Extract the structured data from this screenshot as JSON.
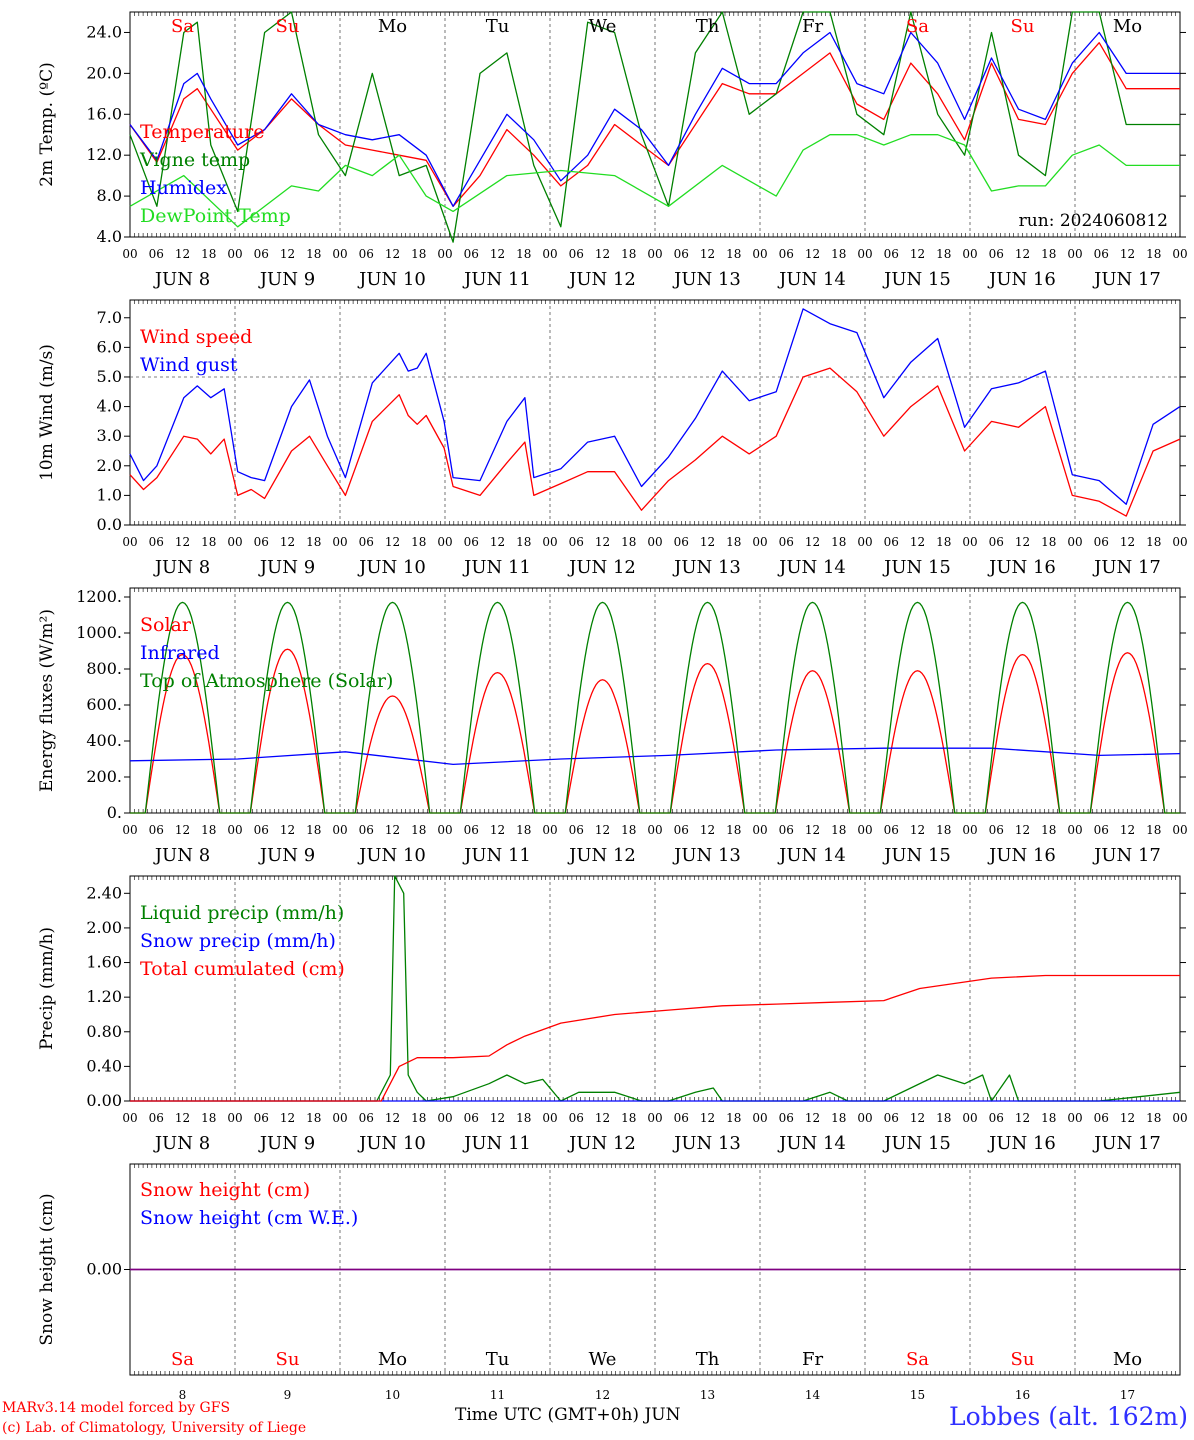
{
  "meta": {
    "run_label": "run: 2024060812",
    "credit_line1": "MARv3.14 model forced by GFS",
    "credit_line2": "(c) Lab. of Climatology, University of Liege",
    "x_title": "Time UTC (GMT+0h) JUN",
    "station": "Lobbes (alt. 162m)"
  },
  "axis": {
    "hour_ticks": [
      "00",
      "06",
      "12",
      "18"
    ],
    "final_tick": "00",
    "days": [
      {
        "month": "JUN",
        "day": "8",
        "weekday": "Sa",
        "weekend": true
      },
      {
        "month": "JUN",
        "day": "9",
        "weekday": "Su",
        "weekend": true
      },
      {
        "month": "JUN",
        "day": "10",
        "weekday": "Mo",
        "weekend": false
      },
      {
        "month": "JUN",
        "day": "11",
        "weekday": "Tu",
        "weekend": false
      },
      {
        "month": "JUN",
        "day": "12",
        "weekday": "We",
        "weekend": false
      },
      {
        "month": "JUN",
        "day": "13",
        "weekday": "Th",
        "weekend": false
      },
      {
        "month": "JUN",
        "day": "14",
        "weekday": "Fr",
        "weekend": false
      },
      {
        "month": "JUN",
        "day": "15",
        "weekday": "Sa",
        "weekend": true
      },
      {
        "month": "JUN",
        "day": "16",
        "weekday": "Su",
        "weekend": true
      },
      {
        "month": "JUN",
        "day": "17",
        "weekday": "Mo",
        "weekend": false
      }
    ]
  },
  "colors": {
    "red": "#ff0000",
    "green": "#008000",
    "blue": "#0000ff",
    "lime": "#22dd22",
    "purple": "#800080",
    "axis": "#000000",
    "grid": "#555555"
  },
  "chart_data": [
    {
      "id": "temp",
      "type": "line",
      "ylabel": "2m Temp. (ºC)",
      "ylim": [
        4,
        26
      ],
      "yticks": [
        4,
        8,
        12,
        16,
        20,
        24
      ],
      "ytick_labels": [
        "4.0",
        "8.0",
        "12.0",
        "16.0",
        "20.0",
        "24.0"
      ],
      "x_unit": "hours since JUN 8 00 UTC",
      "series": [
        {
          "name": "Temperature",
          "color": "red",
          "x": [
            0,
            6,
            12,
            15,
            18,
            24,
            30,
            36,
            42,
            48,
            54,
            60,
            66,
            72,
            78,
            84,
            90,
            96,
            102,
            108,
            114,
            120,
            126,
            132,
            138,
            144,
            150,
            156,
            162,
            168,
            174,
            180,
            186,
            192,
            198,
            204,
            210,
            216,
            222,
            228,
            234
          ],
          "y": [
            15,
            11.3,
            17.5,
            18.5,
            16.5,
            12.5,
            14.5,
            17.5,
            15,
            13,
            12.5,
            12,
            11.5,
            7,
            10,
            14.5,
            12,
            9,
            11,
            15,
            13,
            11,
            15,
            19,
            18,
            18,
            20,
            22,
            17,
            15.5,
            21,
            18,
            13.5,
            21,
            15.5,
            15,
            20,
            23,
            18.5,
            18.5,
            18.5
          ]
        },
        {
          "name": "Vigne temp",
          "color": "green",
          "x": [
            0,
            6,
            12,
            15,
            18,
            24,
            30,
            36,
            42,
            48,
            54,
            60,
            66,
            72,
            78,
            84,
            90,
            96,
            102,
            108,
            114,
            120,
            126,
            132,
            138,
            144,
            150,
            156,
            162,
            168,
            174,
            180,
            186,
            192,
            198,
            204,
            210,
            216,
            222,
            228,
            234
          ],
          "y": [
            14,
            7,
            24,
            25,
            13,
            6.5,
            24,
            26,
            14,
            10,
            20,
            10,
            11,
            3.5,
            20,
            22,
            11,
            5,
            25,
            24,
            14,
            7,
            22,
            26,
            16,
            18,
            26,
            26,
            16,
            14,
            26,
            16,
            12,
            24,
            12,
            10,
            26,
            26,
            15,
            15,
            15
          ]
        },
        {
          "name": "Humidex",
          "color": "blue",
          "x": [
            0,
            6,
            12,
            15,
            18,
            24,
            30,
            36,
            42,
            48,
            54,
            60,
            66,
            72,
            78,
            84,
            90,
            96,
            102,
            108,
            114,
            120,
            126,
            132,
            138,
            144,
            150,
            156,
            162,
            168,
            174,
            180,
            186,
            192,
            198,
            204,
            210,
            216,
            222,
            228,
            234
          ],
          "y": [
            15,
            11.5,
            19,
            20,
            17.5,
            13,
            14.5,
            18,
            15,
            14,
            13.5,
            14,
            12,
            7,
            11.5,
            16,
            13.5,
            9.5,
            12,
            16.5,
            14.5,
            11,
            16,
            20.5,
            19,
            19,
            22,
            24,
            19,
            18,
            24,
            21,
            15.5,
            21.5,
            16.5,
            15.5,
            21,
            24,
            20,
            20,
            20
          ]
        },
        {
          "name": "DewPoint Temp",
          "color": "lime",
          "x": [
            0,
            12,
            24,
            36,
            42,
            48,
            54,
            60,
            66,
            72,
            84,
            96,
            108,
            120,
            132,
            144,
            150,
            156,
            162,
            168,
            174,
            180,
            186,
            192,
            198,
            204,
            210,
            216,
            222,
            228,
            234
          ],
          "y": [
            7,
            10,
            5,
            9,
            8.5,
            11,
            10,
            12,
            8,
            6.5,
            10,
            10.5,
            10,
            7,
            11,
            8,
            12.5,
            14,
            14,
            13,
            14,
            14,
            13,
            8.5,
            9,
            9,
            12,
            13,
            11,
            11,
            11
          ]
        }
      ]
    },
    {
      "id": "wind",
      "type": "line",
      "ylabel": "10m Wind (m/s)",
      "ylim": [
        0,
        7.6
      ],
      "yticks": [
        0,
        1,
        2,
        3,
        4,
        5,
        6,
        7
      ],
      "ytick_labels": [
        "0.0",
        "1.0",
        "2.0",
        "3.0",
        "4.0",
        "5.0",
        "6.0",
        "7.0"
      ],
      "reference_line": 5.0,
      "series": [
        {
          "name": "Wind speed",
          "color": "red",
          "x": [
            0,
            3,
            6,
            12,
            15,
            18,
            21,
            24,
            27,
            30,
            36,
            40,
            44,
            48,
            54,
            60,
            62,
            64,
            66,
            70,
            72,
            78,
            84,
            88,
            90,
            96,
            102,
            108,
            114,
            120,
            126,
            132,
            138,
            144,
            150,
            156,
            162,
            168,
            174,
            180,
            186,
            192,
            198,
            204,
            210,
            216,
            222,
            228,
            234
          ],
          "y": [
            1.7,
            1.2,
            1.6,
            3.0,
            2.9,
            2.4,
            2.9,
            1.0,
            1.2,
            0.9,
            2.5,
            3.0,
            2.0,
            1.0,
            3.5,
            4.4,
            3.7,
            3.4,
            3.7,
            2.6,
            1.3,
            1.0,
            2.1,
            2.8,
            1.0,
            1.4,
            1.8,
            1.8,
            0.5,
            1.5,
            2.2,
            3.0,
            2.4,
            3.0,
            5.0,
            5.3,
            4.5,
            3.0,
            4.0,
            4.7,
            2.5,
            3.5,
            3.3,
            4.0,
            1.0,
            0.8,
            0.3,
            2.5,
            2.9
          ]
        },
        {
          "name": "Wind gust",
          "color": "blue",
          "x": [
            0,
            3,
            6,
            12,
            15,
            18,
            21,
            24,
            27,
            30,
            36,
            40,
            44,
            48,
            54,
            60,
            62,
            64,
            66,
            70,
            72,
            78,
            84,
            88,
            90,
            96,
            102,
            108,
            114,
            120,
            126,
            132,
            138,
            144,
            150,
            156,
            162,
            168,
            174,
            180,
            186,
            192,
            198,
            204,
            210,
            216,
            222,
            228,
            234
          ],
          "y": [
            2.4,
            1.5,
            2.0,
            4.3,
            4.7,
            4.3,
            4.6,
            1.8,
            1.6,
            1.5,
            4.0,
            4.9,
            3.0,
            1.6,
            4.8,
            5.8,
            5.2,
            5.3,
            5.8,
            3.5,
            1.6,
            1.5,
            3.5,
            4.3,
            1.6,
            1.9,
            2.8,
            3.0,
            1.3,
            2.3,
            3.6,
            5.2,
            4.2,
            4.5,
            7.3,
            6.8,
            6.5,
            4.3,
            5.5,
            6.3,
            3.3,
            4.6,
            4.8,
            5.2,
            1.7,
            1.5,
            0.7,
            3.4,
            4.0
          ]
        }
      ]
    },
    {
      "id": "energy",
      "type": "line",
      "ylabel": "Energy fluxes (W/m²)",
      "ylim": [
        0,
        1250
      ],
      "yticks": [
        0,
        200,
        400,
        600,
        800,
        1000,
        1200
      ],
      "ytick_labels": [
        "0.",
        "200.",
        "400.",
        "600.",
        "800.",
        "1000.",
        "1200."
      ],
      "series": [
        {
          "name": "Solar",
          "color": "red",
          "daily_peak": [
            880,
            910,
            650,
            780,
            740,
            830,
            790,
            790,
            880,
            890
          ]
        },
        {
          "name": "Infrared",
          "color": "blue",
          "x": [
            0,
            24,
            48,
            72,
            96,
            120,
            144,
            168,
            192,
            216,
            234
          ],
          "y": [
            290,
            300,
            340,
            270,
            300,
            320,
            350,
            360,
            360,
            320,
            330
          ]
        },
        {
          "name": "Top of Atmosphere (Solar)",
          "color": "green",
          "daily_peak": [
            1170,
            1170,
            1170,
            1170,
            1170,
            1170,
            1170,
            1170,
            1170,
            1170
          ]
        }
      ]
    },
    {
      "id": "precip",
      "type": "line",
      "ylabel": "Precip (mm/h)",
      "ylim": [
        0,
        2.6
      ],
      "yticks": [
        0,
        0.4,
        0.8,
        1.2,
        1.6,
        2.0,
        2.4
      ],
      "ytick_labels": [
        "0.00",
        "0.40",
        "0.80",
        "1.20",
        "1.60",
        "2.00",
        "2.40"
      ],
      "series": [
        {
          "name": "Liquid precip (mm/h)",
          "color": "green",
          "x": [
            0,
            55,
            58,
            59,
            61,
            62,
            64,
            66,
            72,
            80,
            84,
            88,
            92,
            96,
            100,
            108,
            114,
            120,
            126,
            130,
            132,
            136,
            144,
            150,
            156,
            160,
            168,
            180,
            186,
            190,
            192,
            196,
            198,
            216,
            234
          ],
          "y": [
            0,
            0,
            0.3,
            2.6,
            2.4,
            0.3,
            0.1,
            0,
            0.05,
            0.2,
            0.3,
            0.2,
            0.25,
            0,
            0.1,
            0.1,
            0,
            0,
            0.1,
            0.15,
            0,
            0,
            0,
            0,
            0.1,
            0,
            0,
            0.3,
            0.2,
            0.3,
            0,
            0.3,
            0,
            0,
            0.1
          ]
        },
        {
          "name": "Snow precip (mm/h)",
          "color": "blue",
          "x": [
            0,
            234
          ],
          "y": [
            0,
            0
          ]
        },
        {
          "name": "Total cumulated (cm)",
          "color": "red",
          "x": [
            0,
            56,
            60,
            64,
            72,
            80,
            84,
            88,
            96,
            108,
            120,
            132,
            144,
            156,
            168,
            176,
            192,
            204,
            216,
            234
          ],
          "y": [
            0,
            0,
            0.4,
            0.5,
            0.5,
            0.52,
            0.65,
            0.75,
            0.9,
            1.0,
            1.05,
            1.1,
            1.12,
            1.14,
            1.16,
            1.3,
            1.42,
            1.45,
            1.45,
            1.45
          ]
        }
      ]
    },
    {
      "id": "snow",
      "type": "line",
      "ylabel": "Snow height (cm)",
      "ylim": [
        -1,
        1
      ],
      "yticks": [
        0
      ],
      "ytick_labels": [
        "0.00"
      ],
      "series": [
        {
          "name": "Snow height (cm)",
          "color": "red",
          "x": [
            0,
            234
          ],
          "y": [
            0,
            0
          ]
        },
        {
          "name": "Snow height (cm W.E.)",
          "color": "blue",
          "x": [
            0,
            234
          ],
          "y": [
            0,
            0
          ]
        }
      ]
    }
  ]
}
